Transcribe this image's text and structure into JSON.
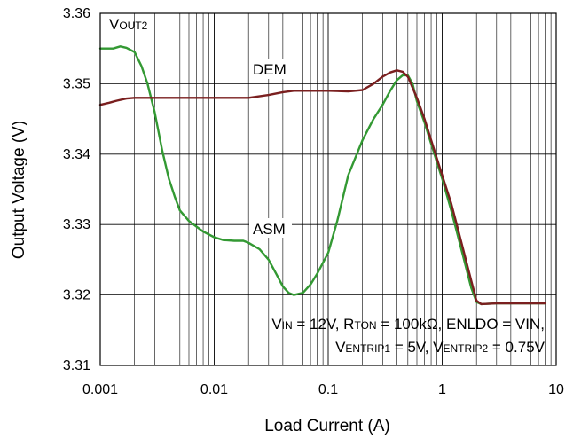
{
  "chart_data": {
    "type": "line",
    "xlabel": "Load Current (A)",
    "ylabel": "Output Voltage (V)",
    "x_scale": "log",
    "xlim": [
      0.001,
      10
    ],
    "ylim": [
      3.31,
      3.36
    ],
    "x_ticks": [
      0.001,
      0.01,
      0.1,
      1,
      10
    ],
    "x_tick_labels": [
      "0.001",
      "0.01",
      "0.1",
      "1",
      "10"
    ],
    "y_ticks": [
      3.31,
      3.32,
      3.33,
      3.34,
      3.35,
      3.36
    ],
    "y_tick_labels": [
      "3.31",
      "3.32",
      "3.33",
      "3.34",
      "3.35",
      "3.36"
    ],
    "grid": true,
    "colors": {
      "DEM": "#7a1f1f",
      "ASM": "#339933"
    },
    "series": [
      {
        "name": "DEM",
        "points": [
          [
            0.001,
            3.347
          ],
          [
            0.0012,
            3.3473
          ],
          [
            0.0014,
            3.3476
          ],
          [
            0.0017,
            3.3479
          ],
          [
            0.002,
            3.348
          ],
          [
            0.005,
            3.348
          ],
          [
            0.01,
            3.348
          ],
          [
            0.02,
            3.348
          ],
          [
            0.03,
            3.3484
          ],
          [
            0.04,
            3.3488
          ],
          [
            0.05,
            3.349
          ],
          [
            0.1,
            3.349
          ],
          [
            0.15,
            3.3489
          ],
          [
            0.2,
            3.3491
          ],
          [
            0.25,
            3.35
          ],
          [
            0.3,
            3.351
          ],
          [
            0.35,
            3.3516
          ],
          [
            0.4,
            3.3519
          ],
          [
            0.45,
            3.3517
          ],
          [
            0.5,
            3.351
          ],
          [
            0.6,
            3.348
          ],
          [
            0.7,
            3.345
          ],
          [
            0.8,
            3.342
          ],
          [
            1.0,
            3.337
          ],
          [
            1.2,
            3.333
          ],
          [
            1.5,
            3.327
          ],
          [
            1.8,
            3.322
          ],
          [
            2.0,
            3.3192
          ],
          [
            2.2,
            3.3187
          ],
          [
            3,
            3.3188
          ],
          [
            5,
            3.3188
          ],
          [
            8,
            3.3188
          ]
        ]
      },
      {
        "name": "ASM",
        "points": [
          [
            0.001,
            3.355
          ],
          [
            0.0013,
            3.355
          ],
          [
            0.0015,
            3.3553
          ],
          [
            0.0017,
            3.3551
          ],
          [
            0.002,
            3.3545
          ],
          [
            0.0023,
            3.3525
          ],
          [
            0.0026,
            3.35
          ],
          [
            0.003,
            3.346
          ],
          [
            0.0035,
            3.3405
          ],
          [
            0.004,
            3.3365
          ],
          [
            0.0045,
            3.334
          ],
          [
            0.005,
            3.332
          ],
          [
            0.006,
            3.3305
          ],
          [
            0.007,
            3.3297
          ],
          [
            0.008,
            3.329
          ],
          [
            0.01,
            3.3282
          ],
          [
            0.012,
            3.3278
          ],
          [
            0.015,
            3.3277
          ],
          [
            0.018,
            3.3277
          ],
          [
            0.02,
            3.3274
          ],
          [
            0.025,
            3.3265
          ],
          [
            0.03,
            3.325
          ],
          [
            0.035,
            3.323
          ],
          [
            0.04,
            3.3212
          ],
          [
            0.045,
            3.3203
          ],
          [
            0.05,
            3.32
          ],
          [
            0.06,
            3.3203
          ],
          [
            0.07,
            3.3215
          ],
          [
            0.08,
            3.323
          ],
          [
            0.1,
            3.326
          ],
          [
            0.12,
            3.3305
          ],
          [
            0.15,
            3.337
          ],
          [
            0.2,
            3.342
          ],
          [
            0.25,
            3.345
          ],
          [
            0.3,
            3.347
          ],
          [
            0.35,
            3.349
          ],
          [
            0.4,
            3.3505
          ],
          [
            0.45,
            3.3512
          ],
          [
            0.5,
            3.3512
          ],
          [
            0.55,
            3.35
          ],
          [
            0.6,
            3.3475
          ],
          [
            0.7,
            3.3445
          ],
          [
            0.8,
            3.3415
          ],
          [
            1.0,
            3.3365
          ],
          [
            1.2,
            3.332
          ],
          [
            1.5,
            3.326
          ],
          [
            1.8,
            3.321
          ],
          [
            2.0,
            3.319
          ],
          [
            2.2,
            3.3187
          ],
          [
            3,
            3.3188
          ],
          [
            5,
            3.3188
          ],
          [
            8,
            3.3188
          ]
        ]
      }
    ],
    "annotations": {
      "vout": {
        "main": "V",
        "sub": "OUT2"
      },
      "dem_label": "DEM",
      "asm_label": "ASM",
      "cond1": [
        {
          "t": "V",
          "sub": false
        },
        {
          "t": "IN",
          "sub": true
        },
        {
          "t": " = 12V, R",
          "sub": false
        },
        {
          "t": "TON",
          "sub": true
        },
        {
          "t": " = 100kΩ, ENLDO = VIN,",
          "sub": false
        }
      ],
      "cond2": [
        {
          "t": "V",
          "sub": false
        },
        {
          "t": "ENTRIP1",
          "sub": true
        },
        {
          "t": "  =  5V, V",
          "sub": false
        },
        {
          "t": "ENTRIP2",
          "sub": true
        },
        {
          "t": "  =  0.75V",
          "sub": false
        }
      ]
    }
  }
}
